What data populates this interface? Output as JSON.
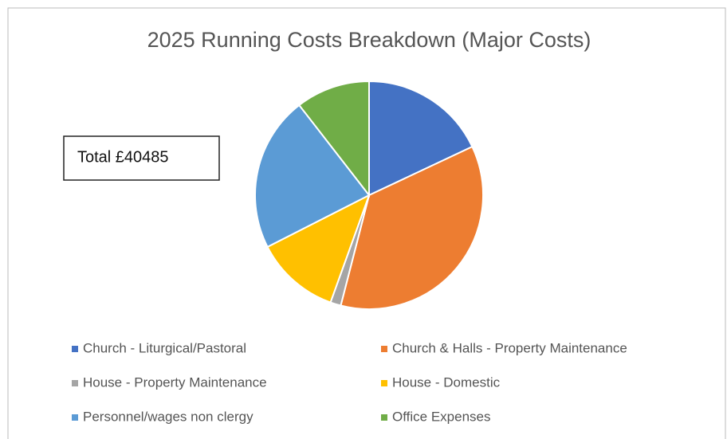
{
  "chart_data": {
    "type": "pie",
    "title": "2025 Running Costs Breakdown (Major Costs)",
    "annotation": "Total £40485",
    "categories": [
      "Church - Liturgical/Pastoral",
      "Church & Halls - Property Maintenance",
      "House - Property Maintenance",
      "House - Domestic",
      "Personnel/wages non clergy",
      "Office Expenses"
    ],
    "values": [
      18,
      36,
      1.5,
      12,
      22,
      10.5
    ],
    "colors": [
      "#4472c4",
      "#ed7d31",
      "#a5a5a5",
      "#ffc000",
      "#5b9bd5",
      "#70ad47"
    ],
    "legend": "bottom"
  }
}
